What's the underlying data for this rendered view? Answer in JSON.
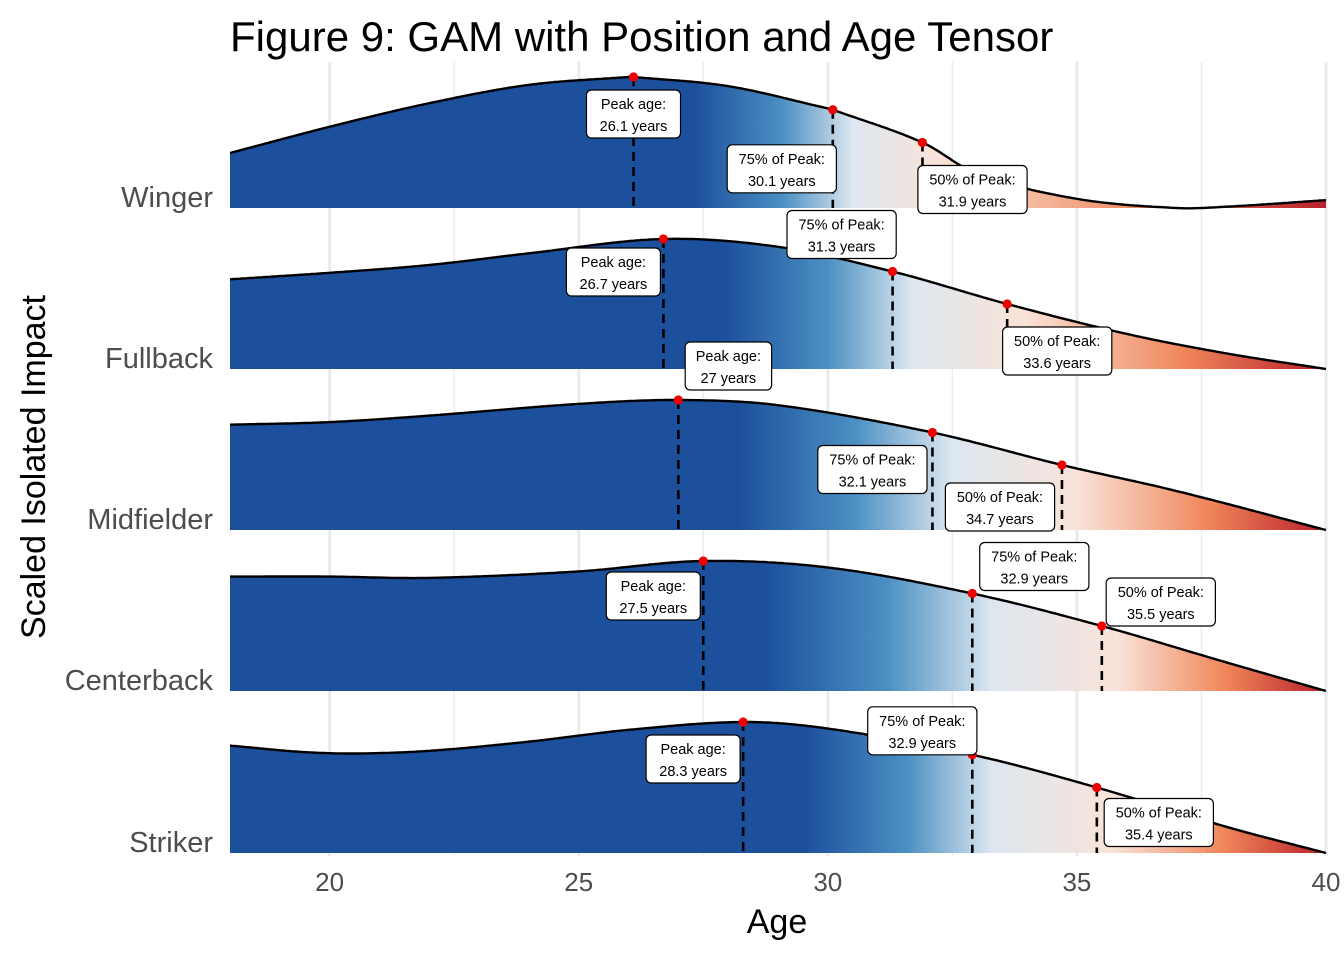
{
  "chart_data": {
    "type": "area",
    "title": "Figure 9: GAM with Position and Age Tensor",
    "xlabel": "Age",
    "ylabel": "Scaled Isolated Impact",
    "xlim": [
      18,
      40
    ],
    "x_ticks": [
      20,
      25,
      30,
      35,
      40
    ],
    "grid": true,
    "fill_colors": {
      "high": "#1c4f9c",
      "mid": "#4b90c3",
      "light": "#dde7f0",
      "pale": "#f9e3d9",
      "orange": "#f0875a",
      "low": "#b81f2a"
    },
    "marker_color": "#ee0000",
    "series": [
      {
        "name": "Winger",
        "x": [
          18,
          20,
          22,
          24,
          26,
          26.1,
          28,
          30,
          30.1,
          31.9,
          33,
          35,
          37,
          38,
          40
        ],
        "y": [
          0.42,
          0.62,
          0.8,
          0.94,
          1.0,
          1.0,
          0.93,
          0.76,
          0.75,
          0.5,
          0.26,
          0.07,
          0.0,
          0.01,
          0.06
        ],
        "peak_age": 26.1,
        "p75_age": 30.1,
        "p50_age": 31.9,
        "labels": {
          "peak": [
            "Peak age:",
            "26.1 years"
          ],
          "p75": [
            "75% of Peak:",
            "30.1 years"
          ],
          "p50": [
            "50% of Peak:",
            "31.9 years"
          ]
        }
      },
      {
        "name": "Fullback",
        "x": [
          18,
          20,
          22,
          24,
          26.7,
          29,
          31.3,
          33.6,
          36,
          38,
          40
        ],
        "y": [
          0.69,
          0.74,
          0.8,
          0.89,
          1.0,
          0.94,
          0.75,
          0.5,
          0.27,
          0.12,
          0.0
        ],
        "peak_age": 26.7,
        "p75_age": 31.3,
        "p50_age": 33.6,
        "labels": {
          "peak": [
            "Peak age:",
            "26.7 years"
          ],
          "p75": [
            "75% of Peak:",
            "31.3 years"
          ],
          "p50": [
            "50% of Peak:",
            "33.6 years"
          ]
        }
      },
      {
        "name": "Midfielder",
        "x": [
          18,
          20,
          22,
          25,
          27,
          29,
          32.1,
          34.7,
          37,
          40
        ],
        "y": [
          0.81,
          0.83,
          0.88,
          0.97,
          1.0,
          0.96,
          0.75,
          0.5,
          0.3,
          0.0
        ],
        "peak_age": 27.0,
        "p75_age": 32.1,
        "p50_age": 34.7,
        "labels": {
          "peak": [
            "Peak age:",
            "27 years"
          ],
          "p75": [
            "75% of Peak:",
            "32.1 years"
          ],
          "p50": [
            "50% of Peak:",
            "34.7 years"
          ]
        }
      },
      {
        "name": "Centerback",
        "x": [
          18,
          20,
          22,
          25,
          27.5,
          30,
          32.9,
          35.5,
          38,
          40
        ],
        "y": [
          0.88,
          0.88,
          0.87,
          0.92,
          1.0,
          0.95,
          0.75,
          0.5,
          0.22,
          0.0
        ],
        "peak_age": 27.5,
        "p75_age": 32.9,
        "p50_age": 35.5,
        "labels": {
          "peak": [
            "Peak age:",
            "27.5 years"
          ],
          "p75": [
            "75% of Peak:",
            "32.9 years"
          ],
          "p50": [
            "50% of Peak:",
            "35.5 years"
          ]
        }
      },
      {
        "name": "Striker",
        "x": [
          18,
          19.5,
          20.6,
          22,
          24,
          26,
          28.3,
          30,
          32.9,
          35.4,
          38,
          40
        ],
        "y": [
          0.82,
          0.77,
          0.76,
          0.78,
          0.85,
          0.94,
          1.0,
          0.95,
          0.75,
          0.5,
          0.2,
          0.0
        ],
        "peak_age": 28.3,
        "p75_age": 32.9,
        "p50_age": 35.4,
        "labels": {
          "peak": [
            "Peak age:",
            "28.3 years"
          ],
          "p75": [
            "75% of Peak:",
            "32.9 years"
          ],
          "p50": [
            "50% of Peak:",
            "35.4 years"
          ]
        }
      }
    ]
  }
}
